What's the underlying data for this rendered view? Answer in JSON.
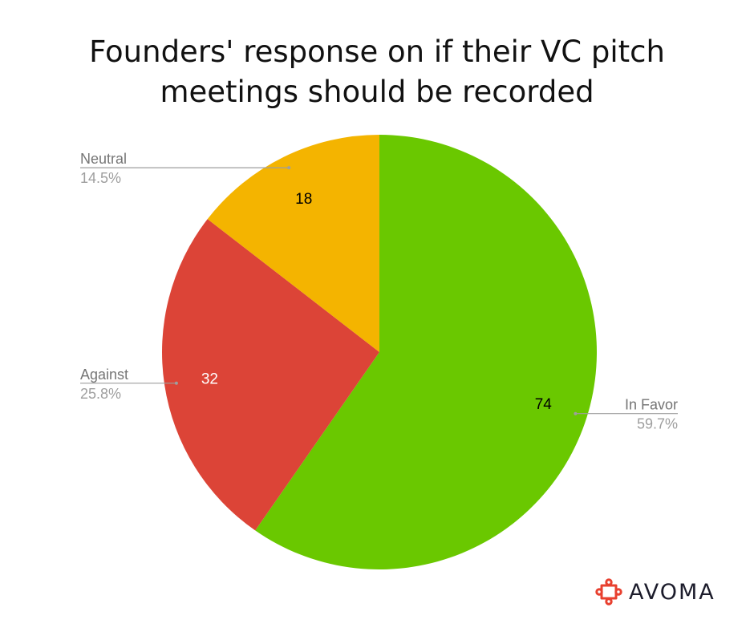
{
  "title": {
    "line1": "Founders' response on if their VC pitch",
    "line2": "meetings should be recorded"
  },
  "chart_data": {
    "type": "pie",
    "title": "Founders' response on if their VC pitch meetings should be recorded",
    "start_angle_deg": 0,
    "direction": "clockwise",
    "slices": [
      {
        "label": "In Favor",
        "value": 74,
        "percent": "59.7%",
        "color": "#6ac800",
        "value_text_color": "#000000",
        "label_side": "right"
      },
      {
        "label": "Against",
        "value": 32,
        "percent": "25.8%",
        "color": "#dc4437",
        "value_text_color": "#ffffff",
        "label_side": "left"
      },
      {
        "label": "Neutral",
        "value": 18,
        "percent": "14.5%",
        "color": "#f4b400",
        "value_text_color": "#000000",
        "label_side": "left"
      }
    ]
  },
  "colors": {
    "label_text": "#757575",
    "percent_text": "#9e9e9e",
    "leader_line": "#9e9e9e"
  },
  "brand": {
    "name": "AVOMA",
    "icon": "avoma-logo-icon",
    "icon_color": "#e8402f"
  }
}
